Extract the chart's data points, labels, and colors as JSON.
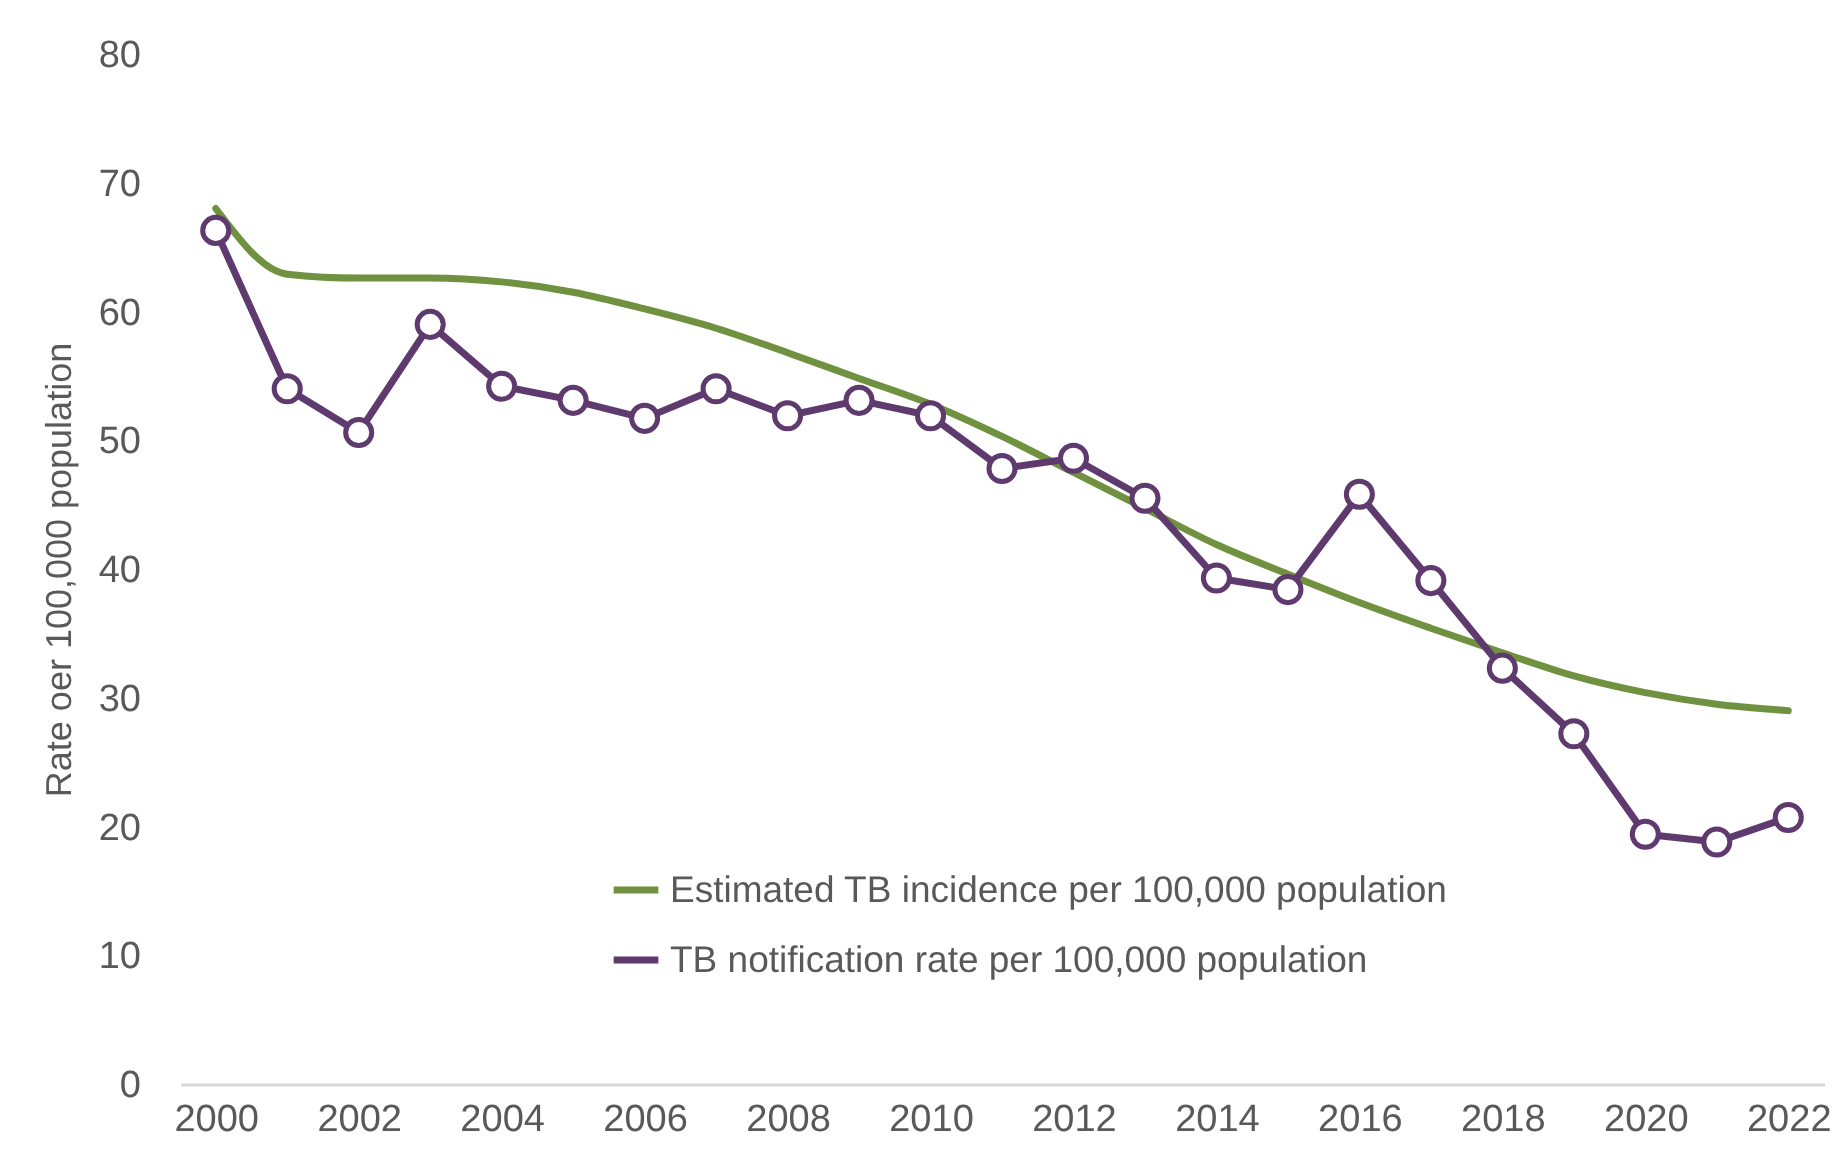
{
  "chart_data": {
    "type": "line",
    "ylabel": "Rate oer 100,000 population",
    "x": [
      2000,
      2001,
      2002,
      2003,
      2004,
      2005,
      2006,
      2007,
      2008,
      2009,
      2010,
      2011,
      2012,
      2013,
      2014,
      2015,
      2016,
      2017,
      2018,
      2019,
      2020,
      2021,
      2022
    ],
    "series": [
      {
        "name": "Estimated TB incidence per 100,000 population",
        "color": "#70913f",
        "marker": "none",
        "values": [
          68.0,
          62.9,
          62.6,
          62.6,
          62.3,
          61.5,
          60.2,
          58.7,
          56.8,
          54.8,
          52.8,
          50.3,
          47.5,
          44.7,
          41.9,
          39.6,
          37.4,
          35.4,
          33.5,
          31.7,
          30.4,
          29.5,
          29.0
        ]
      },
      {
        "name": "TB notification rate per 100,000 population",
        "color": "#5e3a6e",
        "marker": "circle",
        "values": [
          66.3,
          54.0,
          50.6,
          59.0,
          54.2,
          53.1,
          51.7,
          54.0,
          51.9,
          53.1,
          51.9,
          47.8,
          48.6,
          45.5,
          39.3,
          38.4,
          45.8,
          39.1,
          32.3,
          27.2,
          19.4,
          18.8,
          20.7
        ]
      }
    ],
    "xlim": [
      1999.5,
      2022.5
    ],
    "xticks": [
      2000,
      2002,
      2004,
      2006,
      2008,
      2010,
      2012,
      2014,
      2016,
      2018,
      2020,
      2022
    ],
    "ylim": [
      0,
      80
    ],
    "yticks": [
      0,
      10,
      20,
      30,
      40,
      50,
      60,
      70,
      80
    ],
    "grid": false,
    "legend": "bottom"
  }
}
